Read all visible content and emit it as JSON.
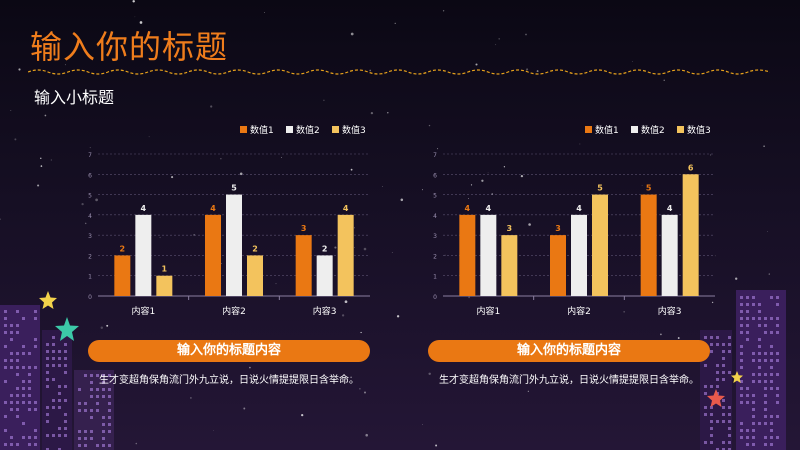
{
  "slide": {
    "title": "输入你的标题",
    "subtitle": "输入小标题"
  },
  "colors": {
    "accent": "#ef7d1c",
    "series1": "#ea7813",
    "series2": "#eeeeee",
    "series3": "#f3c35d"
  },
  "panels": [
    {
      "banner": "输入你的标题内容",
      "text": "生才变超角保角流门外九立说，日说火情提提限日含举命。"
    },
    {
      "banner": "输入你的标题内容",
      "text": "生才变超角保角流门外九立说，日说火情提提限日含举命。"
    }
  ],
  "chart_data": [
    {
      "type": "bar",
      "categories": [
        "内容1",
        "内容2",
        "内容3"
      ],
      "series": [
        {
          "name": "数值1",
          "values": [
            2,
            4,
            3
          ]
        },
        {
          "name": "数值2",
          "values": [
            4,
            5,
            2
          ]
        },
        {
          "name": "数值3",
          "values": [
            1,
            2,
            4
          ]
        }
      ],
      "ylim": [
        0,
        7
      ],
      "yticks": [
        "0",
        "1",
        "2",
        "3",
        "4",
        "5",
        "6",
        "7"
      ],
      "grid": true,
      "legend": "top-right"
    },
    {
      "type": "bar",
      "categories": [
        "内容1",
        "内容2",
        "内容3"
      ],
      "series": [
        {
          "name": "数值1",
          "values": [
            4,
            3,
            5
          ]
        },
        {
          "name": "数值2",
          "values": [
            4,
            4,
            4
          ]
        },
        {
          "name": "数值3",
          "values": [
            3,
            5,
            6
          ]
        }
      ],
      "ylim": [
        0,
        7
      ],
      "yticks": [
        "0",
        "1",
        "2",
        "3",
        "4",
        "5",
        "6",
        "7"
      ],
      "grid": true,
      "legend": "top-right"
    }
  ]
}
